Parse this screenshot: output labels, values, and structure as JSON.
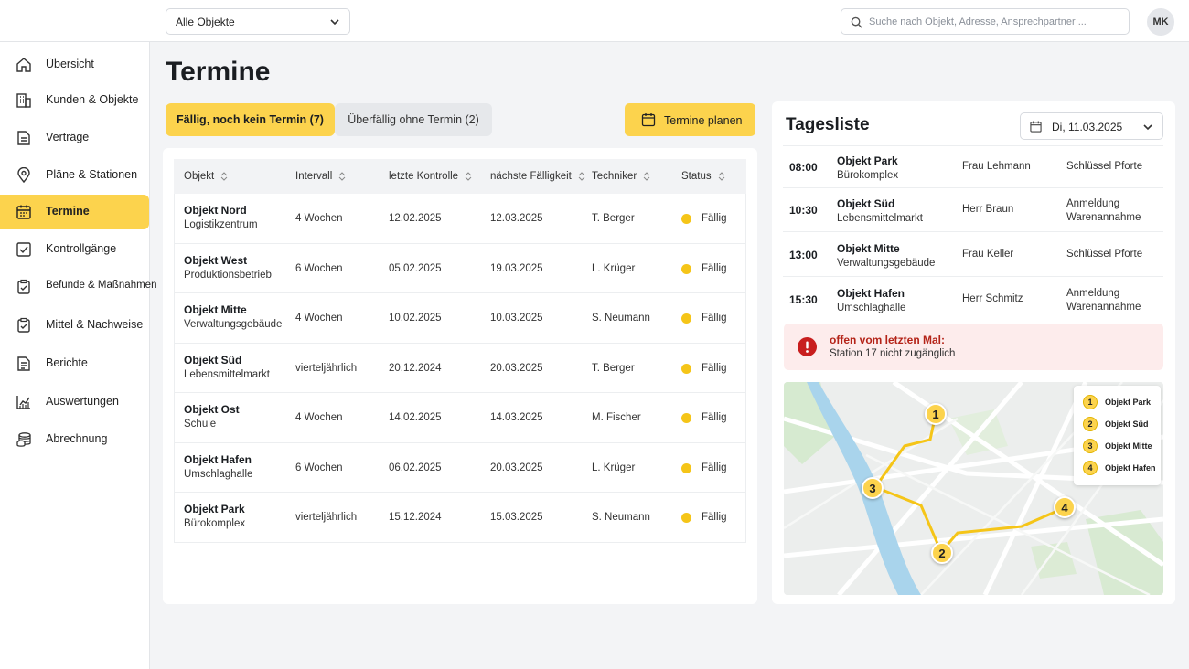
{
  "topbar": {
    "object_filter": "Alle Objekte",
    "search_placeholder": "Suche nach Objekt, Adresse, Ansprechpartner ...",
    "avatar_initials": "MK"
  },
  "sidebar": {
    "items": [
      {
        "label": "Übersicht",
        "icon": "home-icon"
      },
      {
        "label": "Kunden & Objekte",
        "icon": "building-icon"
      },
      {
        "label": "Verträge",
        "icon": "document-icon"
      },
      {
        "label": "Pläne & Stationen",
        "icon": "map-pin-icon"
      },
      {
        "label": "Termine",
        "icon": "calendar-icon"
      },
      {
        "label": "Kontrollgänge",
        "icon": "checklist-icon"
      },
      {
        "label": "Befunde & Maßnahmen",
        "icon": "clipboard-check-icon"
      },
      {
        "label": "Mittel & Nachweise",
        "icon": "clipboard-check-icon"
      },
      {
        "label": "Berichte",
        "icon": "report-icon"
      },
      {
        "label": "Auswertungen",
        "icon": "chart-icon"
      },
      {
        "label": "Abrechnung",
        "icon": "coins-icon"
      }
    ],
    "active_index": 4
  },
  "main": {
    "title": "Termine",
    "tabs": [
      {
        "label": "Fällig, noch kein Termin (7)",
        "active": true
      },
      {
        "label": "Überfällig ohne Termin (2)",
        "active": false
      }
    ],
    "plan_button": "Termine planen",
    "table": {
      "headers": [
        "Objekt",
        "Intervall",
        "letzte Kontrolle",
        "nächste Fälligkeit",
        "Techniker",
        "Status"
      ],
      "rows": [
        {
          "name": "Objekt Nord",
          "type": "Logistikzentrum",
          "interval": "4 Wochen",
          "last": "12.02.2025",
          "next": "12.03.2025",
          "tech": "T. Berger",
          "status": "Fällig"
        },
        {
          "name": "Objekt West",
          "type": "Produktionsbetrieb",
          "interval": "6 Wochen",
          "last": "05.02.2025",
          "next": "19.03.2025",
          "tech": "L. Krüger",
          "status": "Fällig"
        },
        {
          "name": "Objekt Mitte",
          "type": "Verwaltungsgebäude",
          "interval": "4 Wochen",
          "last": "10.02.2025",
          "next": "10.03.2025",
          "tech": "S. Neumann",
          "status": "Fällig"
        },
        {
          "name": "Objekt Süd",
          "type": "Lebensmittelmarkt",
          "interval": "vierteljährlich",
          "last": "20.12.2024",
          "next": "20.03.2025",
          "tech": "T. Berger",
          "status": "Fällig"
        },
        {
          "name": "Objekt Ost",
          "type": "Schule",
          "interval": "4 Wochen",
          "last": "14.02.2025",
          "next": "14.03.2025",
          "tech": "M. Fischer",
          "status": "Fällig"
        },
        {
          "name": "Objekt Hafen",
          "type": "Umschlaghalle",
          "interval": "6 Wochen",
          "last": "06.02.2025",
          "next": "20.03.2025",
          "tech": "L. Krüger",
          "status": "Fällig"
        },
        {
          "name": "Objekt Park",
          "type": "Bürokomplex",
          "interval": "vierteljährlich",
          "last": "15.12.2024",
          "next": "15.03.2025",
          "tech": "S. Neumann",
          "status": "Fällig"
        }
      ],
      "status_color": "#f5c518"
    }
  },
  "daylist": {
    "title": "Tagesliste",
    "date": "Di, 11.03.2025",
    "entries": [
      {
        "time": "08:00",
        "name": "Objekt Park",
        "type": "Bürokomplex",
        "contact": "Frau Lehmann",
        "note1": "Schlüssel Pforte",
        "note2": ""
      },
      {
        "time": "10:30",
        "name": "Objekt Süd",
        "type": "Lebensmittelmarkt",
        "contact": "Herr Braun",
        "note1": "Anmeldung",
        "note2": "Warenannahme"
      },
      {
        "time": "13:00",
        "name": "Objekt Mitte",
        "type": "Verwaltungsgebäude",
        "contact": "Frau Keller",
        "note1": "Schlüssel Pforte",
        "note2": ""
      },
      {
        "time": "15:30",
        "name": "Objekt Hafen",
        "type": "Umschlaghalle",
        "contact": "Herr Schmitz",
        "note1": "Anmeldung",
        "note2": "Warenannahme"
      }
    ],
    "alert": {
      "title": "offen vom letzten Mal:",
      "text": "Station 17 nicht zugänglich"
    },
    "map_legend": [
      {
        "num": "1",
        "label": "Objekt Park"
      },
      {
        "num": "2",
        "label": "Objekt Süd"
      },
      {
        "num": "3",
        "label": "Objekt Mitte"
      },
      {
        "num": "4",
        "label": "Objekt Hafen"
      }
    ],
    "map_markers": [
      "1",
      "2",
      "3",
      "4"
    ]
  },
  "colors": {
    "accent": "#fcd34d",
    "alert_bg": "#fdecec",
    "alert_text": "#b42318"
  }
}
